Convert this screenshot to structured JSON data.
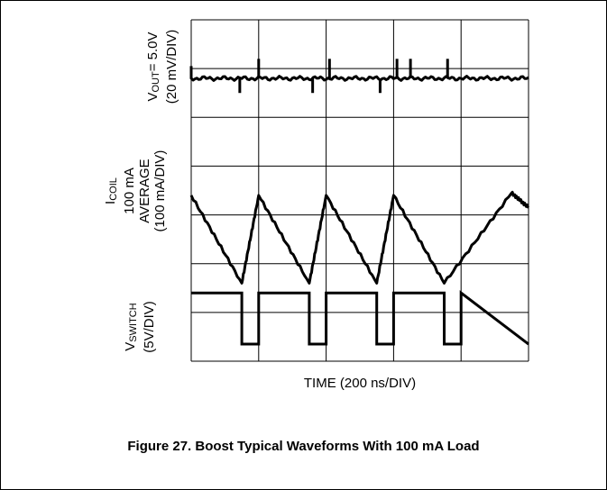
{
  "chart_data": {
    "type": "line",
    "title": "",
    "caption": "Figure 27. Boost Typical Waveforms With 100 mA Load",
    "xlabel": "TIME (200 ns/DIV)",
    "x_unit_per_div": "200 ns",
    "grid": true,
    "grid_divisions": {
      "x": 5,
      "y": 7
    },
    "x_divisions": [
      0,
      0.75,
      1.75,
      2.75,
      3.75,
      4.1,
      4.75,
      5
    ],
    "channels": [
      {
        "name": "VOUT",
        "label_lines": [
          {
            "main": "V",
            "sub": "OUT",
            "rest": "= 5.0V"
          },
          {
            "main": "(20 mV/DIV)"
          }
        ],
        "baseline_div": 1.2,
        "spikes_x_div": [
          0.72,
          1.0,
          1.8,
          2.05,
          2.8,
          3.05,
          3.25,
          3.8
        ],
        "note": "5.0 V DC level with small switching spikes at each transition"
      },
      {
        "name": "ICOIL",
        "label_lines": [
          {
            "main": "I",
            "sub": "COIL"
          },
          {
            "main": "100 mA"
          },
          {
            "main": "AVERAGE"
          },
          {
            "main": "(100 mA/DIV)"
          }
        ],
        "waveform": "triangle",
        "peaks_x_div": [
          0,
          1.0,
          2.0,
          3.0
        ],
        "valleys_x_div": [
          0.75,
          1.75,
          2.75,
          3.75
        ],
        "peak_level_div": 3.6,
        "valley_level_div": 5.4
      },
      {
        "name": "VSWITCH",
        "label_lines": [
          {
            "main": "V",
            "sub": "SWITCH"
          },
          {
            "main": "(5V/DIV)"
          }
        ],
        "waveform": "square",
        "high_level_div": 5.6,
        "low_level_div": 6.65,
        "low_intervals_x_div": [
          [
            0.75,
            1.0
          ],
          [
            1.75,
            2.0
          ],
          [
            2.75,
            3.0
          ],
          [
            3.75,
            4.0
          ]
        ]
      }
    ]
  }
}
